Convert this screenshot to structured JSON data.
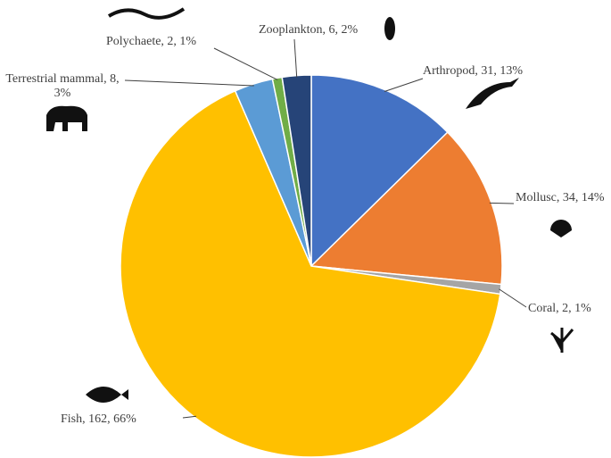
{
  "chart_data": {
    "type": "pie",
    "values": [
      31,
      34,
      2,
      162,
      8,
      2,
      6
    ],
    "value_labels": [
      "Arthropod, 31, 13%",
      "Mollusc, 34, 14%",
      "Coral, 2, 1%",
      "Fish, 162, 66%",
      "Terrestrial mammal, 8, 3%",
      "Polychaete, 2, 1%",
      "Zooplankton, 6, 2%"
    ],
    "colors": [
      "#4472c4",
      "#ed7d31",
      "#a5a5a5",
      "#ffc000",
      "#5b9bd5",
      "#70ad47",
      "#264478"
    ]
  }
}
